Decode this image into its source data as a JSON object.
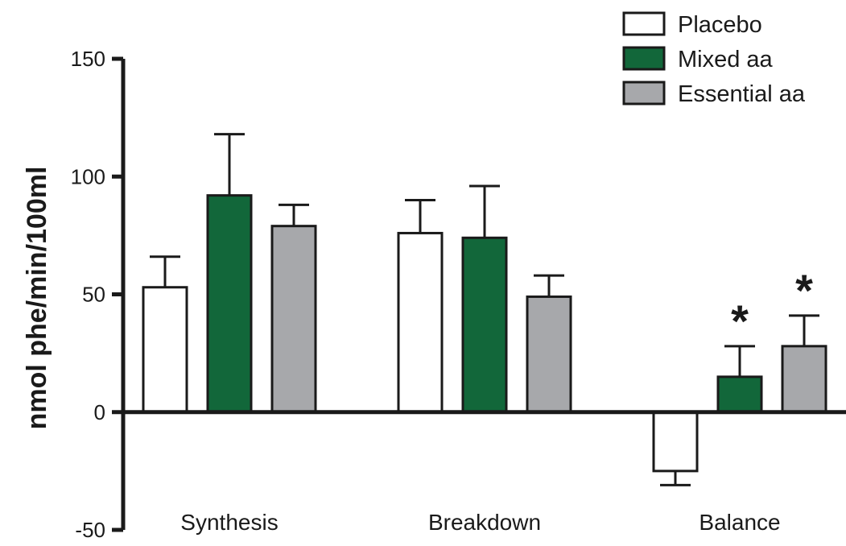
{
  "chart_data": {
    "type": "bar",
    "ylabel": "nmol phe/min/100ml",
    "ylim": [
      -50,
      150
    ],
    "yticks": [
      -50,
      0,
      50,
      100,
      150
    ],
    "categories": [
      "Synthesis",
      "Breakdown",
      "Balance"
    ],
    "series": [
      {
        "name": "Placebo",
        "color": "#ffffff",
        "values": [
          53,
          76,
          -25
        ],
        "errors": [
          13,
          14,
          6
        ],
        "significant": [
          false,
          false,
          false
        ]
      },
      {
        "name": "Mixed aa",
        "color": "#12673a",
        "values": [
          92,
          74,
          15
        ],
        "errors": [
          26,
          22,
          13
        ],
        "significant": [
          false,
          false,
          true
        ]
      },
      {
        "name": "Essential aa",
        "color": "#a7a8ab",
        "values": [
          79,
          49,
          28
        ],
        "errors": [
          9,
          9,
          13
        ],
        "significant": [
          false,
          false,
          true
        ]
      }
    ],
    "significance_marker": "*",
    "legend": {
      "position": "top-right"
    },
    "grid": false
  }
}
